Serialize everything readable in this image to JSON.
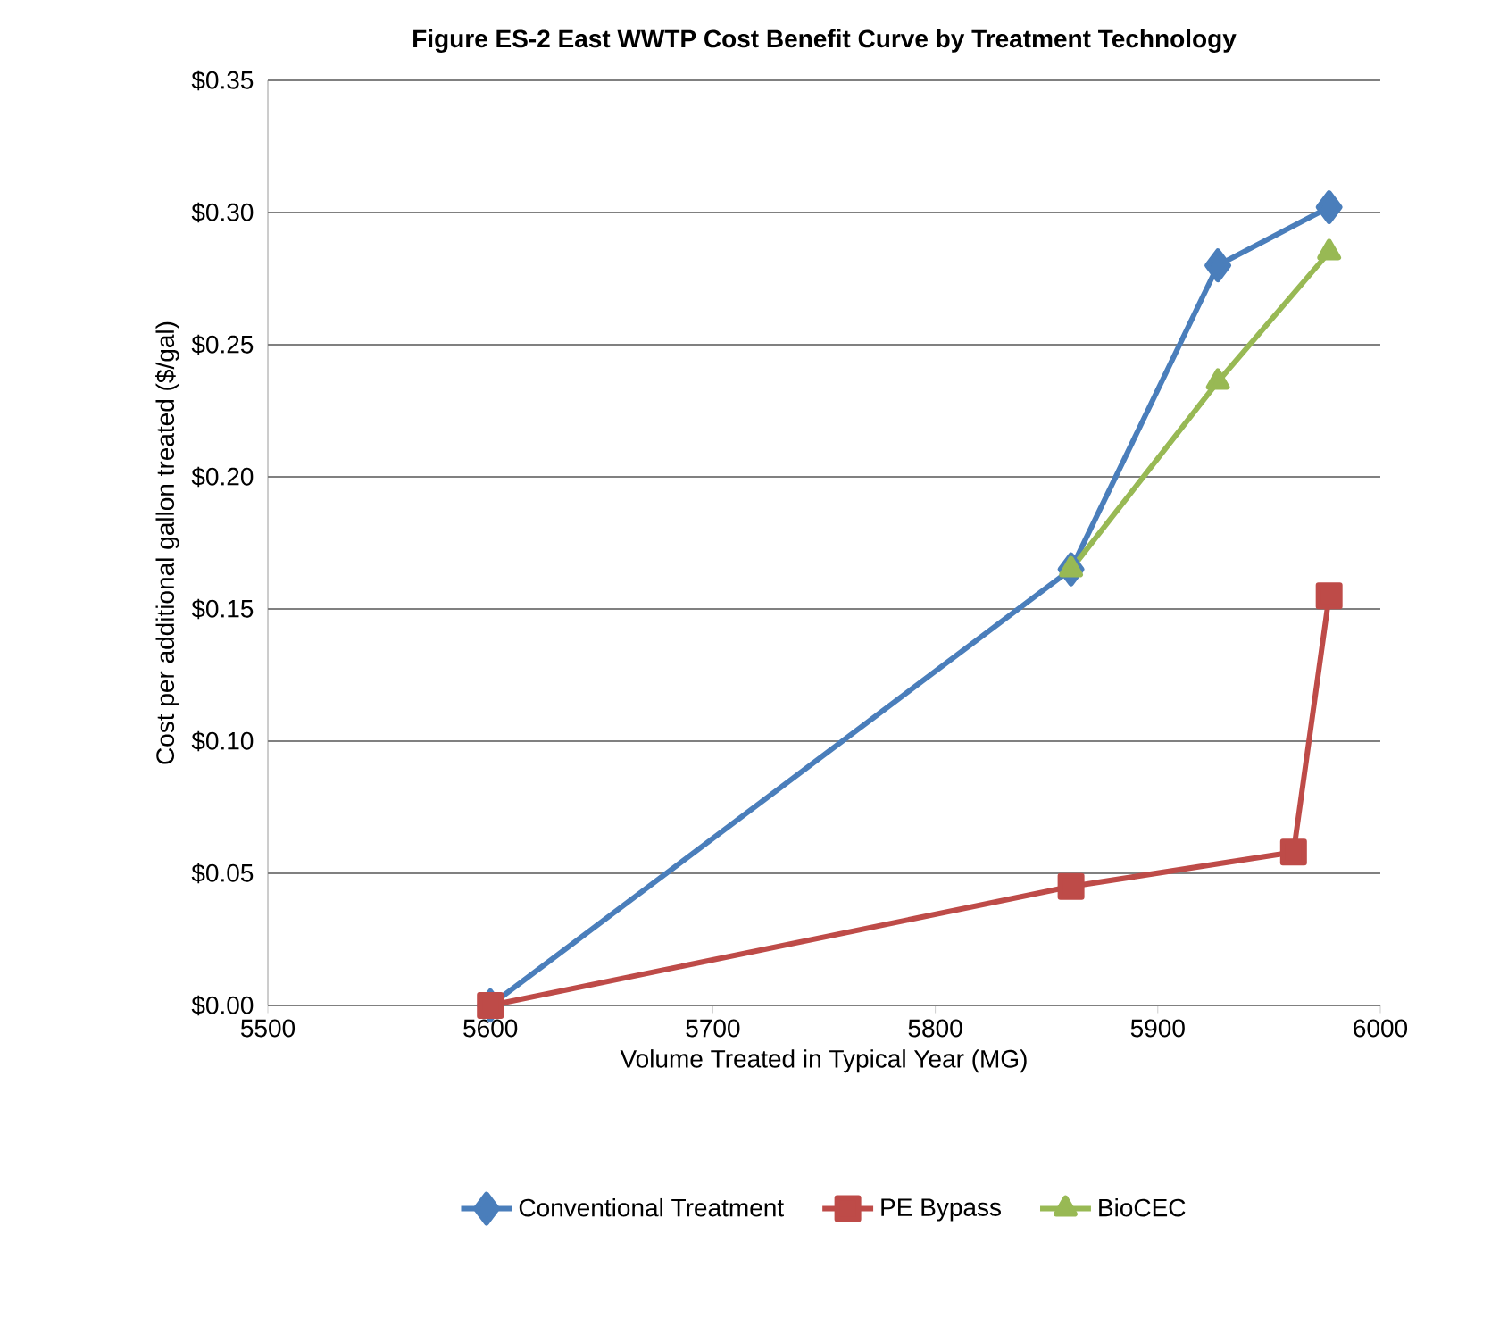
{
  "chart_data": {
    "type": "line",
    "title": "Figure ES-2 East WWTP Cost Benefit Curve by Treatment Technology",
    "xlabel": "Volume Treated in Typical Year (MG)",
    "ylabel": "Cost per additional gallon treated ($/gal)",
    "xlim": [
      5500,
      6000
    ],
    "xticks": [
      5500,
      5600,
      5700,
      5800,
      5900,
      6000
    ],
    "ylim": [
      0,
      0.35
    ],
    "yticks": [
      {
        "value": 0,
        "label": "$0.00"
      },
      {
        "value": 0.05,
        "label": "$0.05"
      },
      {
        "value": 0.1,
        "label": "$0.10"
      },
      {
        "value": 0.15,
        "label": "$0.15"
      },
      {
        "value": 0.2,
        "label": "$0.20"
      },
      {
        "value": 0.25,
        "label": "$0.25"
      },
      {
        "value": 0.3,
        "label": "$0.30"
      },
      {
        "value": 0.35,
        "label": "$0.35"
      }
    ],
    "grid": "y",
    "legend": "bottom",
    "line_style": "solid",
    "series": [
      {
        "name": "Conventional Treatment",
        "color": "#4a7ebb",
        "marker": "diamond",
        "x": [
          5600,
          5861,
          5927,
          5977
        ],
        "values": [
          0,
          0.165,
          0.28,
          0.302
        ]
      },
      {
        "name": "PE Bypass",
        "color": "#be4b48",
        "marker": "square",
        "x": [
          5600,
          5861,
          5961,
          5977
        ],
        "values": [
          0,
          0.045,
          0.058,
          0.155
        ]
      },
      {
        "name": "BioCEC",
        "color": "#98b954",
        "marker": "triangle",
        "x": [
          5861,
          5927,
          5977
        ],
        "values": [
          0.165,
          0.236,
          0.285
        ]
      }
    ]
  }
}
